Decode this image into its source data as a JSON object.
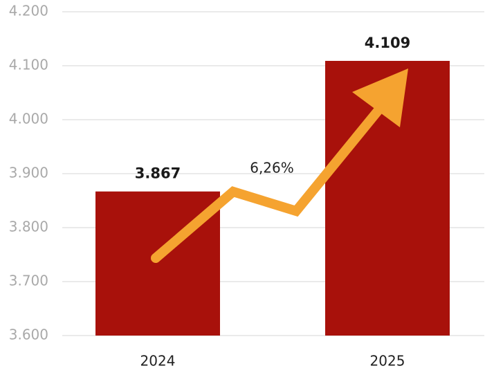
{
  "chart_data": {
    "type": "bar",
    "categories": [
      "2024",
      "2025"
    ],
    "values": [
      3867,
      4109
    ],
    "value_labels": [
      "3.867",
      "4.109"
    ],
    "color": "#a8110b",
    "annotation": "6,26%",
    "ylim": [
      3600,
      4200
    ],
    "yticks": [
      {
        "value": 3600,
        "label": "3.600"
      },
      {
        "value": 3700,
        "label": "3.700"
      },
      {
        "value": 3800,
        "label": "3.800"
      },
      {
        "value": 3900,
        "label": "3.900"
      },
      {
        "value": 4000,
        "label": "4.000"
      },
      {
        "value": 4100,
        "label": "4.100"
      },
      {
        "value": 4200,
        "label": "4.200"
      }
    ],
    "grid": true
  }
}
